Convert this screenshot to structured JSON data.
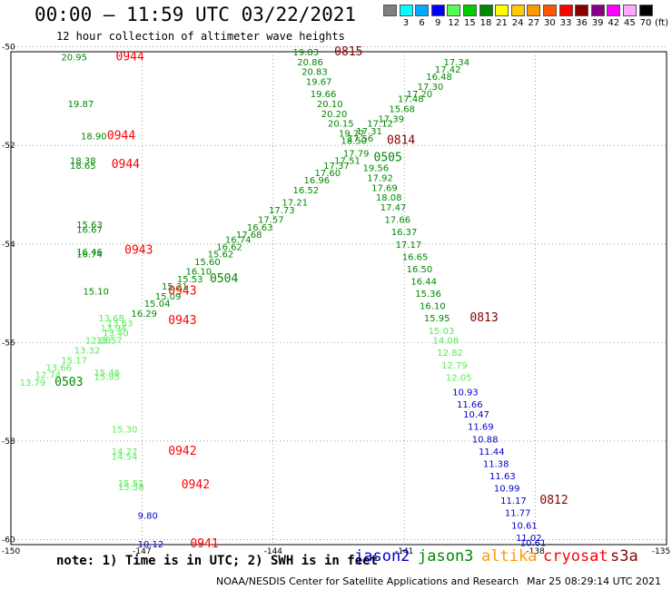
{
  "header": {
    "title": "00:00 – 11:59 UTC 03/22/2021",
    "subtitle": "12 hour collection of altimeter wave heights"
  },
  "colorbar": {
    "labels": [
      "3",
      "6",
      "9",
      "12",
      "15",
      "18",
      "21",
      "24",
      "27",
      "30",
      "33",
      "36",
      "39",
      "42",
      "45",
      "70",
      "(ft)"
    ],
    "colors": [
      "#808080",
      "#00ffff",
      "#00aaff",
      "#0000ff",
      "#55ff55",
      "#00cc00",
      "#008800",
      "#ffff00",
      "#ffcc00",
      "#ff9900",
      "#ff5500",
      "#ff0000",
      "#880000",
      "#880088",
      "#ff00ff",
      "#ffaaff",
      "#000000"
    ]
  },
  "map": {
    "lon_ticks": [
      "-150",
      "-147",
      "-144",
      "-141",
      "-138",
      "-135"
    ],
    "lat_ticks": [
      "-50",
      "-52",
      "-54",
      "-56",
      "-58",
      "-60"
    ],
    "frame": {
      "lon_min": -150,
      "lon_max": -135,
      "lat_min": -60.1,
      "lat_max": -50.1
    },
    "colors": {
      "jason3": "#008800",
      "jason3_light": "#55ee55",
      "altika": "#ff9900",
      "jason2": "#0000cc",
      "cryosat": "#ff0000",
      "time_dark": "#880000"
    },
    "points": [
      {
        "t": "20.95",
        "lon": -148.85,
        "lat": -50.2,
        "c": "#008800"
      },
      {
        "t": "0944",
        "lon": -147.6,
        "lat": -50.2,
        "c": "#ff0000",
        "time": true
      },
      {
        "t": "19.87",
        "lon": -148.7,
        "lat": -51.15,
        "c": "#008800"
      },
      {
        "t": "18.90",
        "lon": -148.4,
        "lat": -51.8,
        "c": "#008800"
      },
      {
        "t": "0944",
        "lon": -147.8,
        "lat": -51.8,
        "c": "#ff0000",
        "time": true
      },
      {
        "t": "18.38",
        "lon": -148.65,
        "lat": -52.3,
        "c": "#008800"
      },
      {
        "t": "18.65",
        "lon": -148.65,
        "lat": -52.4,
        "c": "#008800"
      },
      {
        "t": "0944",
        "lon": -147.7,
        "lat": -52.38,
        "c": "#ff0000",
        "time": true
      },
      {
        "t": "15.63",
        "lon": -148.5,
        "lat": -53.6,
        "c": "#008800"
      },
      {
        "t": "16.67",
        "lon": -148.5,
        "lat": -53.7,
        "c": "#008800"
      },
      {
        "t": "16.46",
        "lon": -148.5,
        "lat": -54.15,
        "c": "#008800"
      },
      {
        "t": "16.74",
        "lon": -148.5,
        "lat": -54.2,
        "c": "#008800"
      },
      {
        "t": "0943",
        "lon": -147.4,
        "lat": -54.12,
        "c": "#ff0000",
        "time": true
      },
      {
        "t": "15.10",
        "lon": -148.35,
        "lat": -54.95,
        "c": "#008800"
      },
      {
        "t": "0943",
        "lon": -146.4,
        "lat": -54.95,
        "c": "#ff0000",
        "time": true
      },
      {
        "t": "0943",
        "lon": -146.4,
        "lat": -55.55,
        "c": "#ff0000",
        "time": true
      },
      {
        "t": "15.46",
        "lon": -148.1,
        "lat": -56.6,
        "c": "#55ee55"
      },
      {
        "t": "15.85",
        "lon": -148.1,
        "lat": -56.68,
        "c": "#55ee55"
      },
      {
        "t": "15.30",
        "lon": -147.7,
        "lat": -57.75,
        "c": "#55ee55"
      },
      {
        "t": "14.77",
        "lon": -147.7,
        "lat": -58.2,
        "c": "#55ee55"
      },
      {
        "t": "14.54",
        "lon": -147.7,
        "lat": -58.3,
        "c": "#55ee55"
      },
      {
        "t": "0942",
        "lon": -146.4,
        "lat": -58.2,
        "c": "#ff0000",
        "time": true
      },
      {
        "t": "15.51",
        "lon": -147.55,
        "lat": -58.85,
        "c": "#55ee55"
      },
      {
        "t": "15.58",
        "lon": -147.55,
        "lat": -58.92,
        "c": "#55ee55"
      },
      {
        "t": "0942",
        "lon": -146.1,
        "lat": -58.88,
        "c": "#ff0000",
        "time": true
      },
      {
        "t": "9.80",
        "lon": -147.1,
        "lat": -59.5,
        "c": "#0000cc"
      },
      {
        "t": "10.12",
        "lon": -147.1,
        "lat": -60.08,
        "c": "#0000cc"
      },
      {
        "t": "0941",
        "lon": -145.9,
        "lat": -60.08,
        "c": "#ff0000",
        "time": true
      },
      {
        "t": "17.34",
        "lon": -140.1,
        "lat": -50.3,
        "c": "#008800"
      },
      {
        "t": "17.42",
        "lon": -140.3,
        "lat": -50.45,
        "c": "#008800"
      },
      {
        "t": "16.48",
        "lon": -140.5,
        "lat": -50.6,
        "c": "#008800"
      },
      {
        "t": "17.30",
        "lon": -140.7,
        "lat": -50.8,
        "c": "#008800"
      },
      {
        "t": "17.20",
        "lon": -140.95,
        "lat": -50.95,
        "c": "#008800"
      },
      {
        "t": "17.48",
        "lon": -141.15,
        "lat": -51.05,
        "c": "#008800"
      },
      {
        "t": "15.68",
        "lon": -141.35,
        "lat": -51.25,
        "c": "#008800"
      },
      {
        "t": "17.39",
        "lon": -141.6,
        "lat": -51.45,
        "c": "#008800"
      },
      {
        "t": "17.12",
        "lon": -141.85,
        "lat": -51.55,
        "c": "#008800"
      },
      {
        "t": "17.31",
        "lon": -142.1,
        "lat": -51.7,
        "c": "#008800"
      },
      {
        "t": "17.56",
        "lon": -142.3,
        "lat": -51.85,
        "c": "#008800"
      },
      {
        "t": "0505",
        "lon": -141.7,
        "lat": -52.25,
        "c": "#008800",
        "time": true
      },
      {
        "t": "17.79",
        "lon": -142.4,
        "lat": -52.15,
        "c": "#008800"
      },
      {
        "t": "17.51",
        "lon": -142.6,
        "lat": -52.3,
        "c": "#008800"
      },
      {
        "t": "17.37",
        "lon": -142.85,
        "lat": -52.4,
        "c": "#008800"
      },
      {
        "t": "17.60",
        "lon": -143.05,
        "lat": -52.55,
        "c": "#008800"
      },
      {
        "t": "16.96",
        "lon": -143.3,
        "lat": -52.7,
        "c": "#008800"
      },
      {
        "t": "16.52",
        "lon": -143.55,
        "lat": -52.9,
        "c": "#008800"
      },
      {
        "t": "17.21",
        "lon": -143.8,
        "lat": -53.15,
        "c": "#008800"
      },
      {
        "t": "17.73",
        "lon": -144.1,
        "lat": -53.3,
        "c": "#008800"
      },
      {
        "t": "17.57",
        "lon": -144.35,
        "lat": -53.5,
        "c": "#008800"
      },
      {
        "t": "16.63",
        "lon": -144.6,
        "lat": -53.65,
        "c": "#008800"
      },
      {
        "t": "17.68",
        "lon": -144.85,
        "lat": -53.8,
        "c": "#008800"
      },
      {
        "t": "16.74",
        "lon": -145.1,
        "lat": -53.9,
        "c": "#008800"
      },
      {
        "t": "16.62",
        "lon": -145.3,
        "lat": -54.05,
        "c": "#008800"
      },
      {
        "t": "15.62",
        "lon": -145.5,
        "lat": -54.2,
        "c": "#008800"
      },
      {
        "t": "15.60",
        "lon": -145.8,
        "lat": -54.35,
        "c": "#008800"
      },
      {
        "t": "16.10",
        "lon": -146.0,
        "lat": -54.55,
        "c": "#008800"
      },
      {
        "t": "15.53",
        "lon": -146.2,
        "lat": -54.7,
        "c": "#008800"
      },
      {
        "t": "0504",
        "lon": -145.45,
        "lat": -54.7,
        "c": "#008800",
        "time": true
      },
      {
        "t": "15.21",
        "lon": -146.55,
        "lat": -54.85,
        "c": "#008800"
      },
      {
        "t": "15.09",
        "lon": -146.7,
        "lat": -55.05,
        "c": "#008800"
      },
      {
        "t": "15.04",
        "lon": -146.95,
        "lat": -55.2,
        "c": "#008800"
      },
      {
        "t": "16.29",
        "lon": -147.25,
        "lat": -55.4,
        "c": "#008800"
      },
      {
        "t": "13.68",
        "lon": -148.0,
        "lat": -55.5,
        "c": "#55ee55"
      },
      {
        "t": "13.63",
        "lon": -147.8,
        "lat": -55.6,
        "c": "#55ee55"
      },
      {
        "t": "13.94",
        "lon": -147.95,
        "lat": -55.7,
        "c": "#55ee55"
      },
      {
        "t": "13.40",
        "lon": -147.9,
        "lat": -55.8,
        "c": "#55ee55"
      },
      {
        "t": "12.88",
        "lon": -148.3,
        "lat": -55.95,
        "c": "#55ee55"
      },
      {
        "t": "13.57",
        "lon": -148.05,
        "lat": -55.95,
        "c": "#55ee55"
      },
      {
        "t": "13.32",
        "lon": -148.55,
        "lat": -56.15,
        "c": "#55ee55"
      },
      {
        "t": "15.17",
        "lon": -148.85,
        "lat": -56.35,
        "c": "#55ee55"
      },
      {
        "t": "13.66",
        "lon": -149.2,
        "lat": -56.5,
        "c": "#55ee55"
      },
      {
        "t": "12.74",
        "lon": -149.45,
        "lat": -56.65,
        "c": "#55ee55"
      },
      {
        "t": "13.79",
        "lon": -149.8,
        "lat": -56.8,
        "c": "#55ee55"
      },
      {
        "t": "0503",
        "lon": -149.0,
        "lat": -56.8,
        "c": "#008800",
        "time": true
      },
      {
        "t": "19.83",
        "lon": -143.55,
        "lat": -50.1,
        "c": "#008800"
      },
      {
        "t": "0815",
        "lon": -142.6,
        "lat": -50.1,
        "c": "#880000",
        "time": true
      },
      {
        "t": "20.86",
        "lon": -143.45,
        "lat": -50.3,
        "c": "#008800"
      },
      {
        "t": "20.83",
        "lon": -143.35,
        "lat": -50.5,
        "c": "#008800"
      },
      {
        "t": "19.67",
        "lon": -143.25,
        "lat": -50.7,
        "c": "#008800"
      },
      {
        "t": "19.66",
        "lon": -143.15,
        "lat": -50.95,
        "c": "#008800"
      },
      {
        "t": "20.10",
        "lon": -143.0,
        "lat": -51.15,
        "c": "#008800"
      },
      {
        "t": "20.20",
        "lon": -142.9,
        "lat": -51.35,
        "c": "#008800"
      },
      {
        "t": "20.15",
        "lon": -142.75,
        "lat": -51.55,
        "c": "#008800"
      },
      {
        "t": "19.77",
        "lon": -142.5,
        "lat": -51.75,
        "c": "#008800"
      },
      {
        "t": "18.50",
        "lon": -142.45,
        "lat": -51.9,
        "c": "#008800"
      },
      {
        "t": "0814",
        "lon": -141.4,
        "lat": -51.9,
        "c": "#880000",
        "time": true
      },
      {
        "t": "19.56",
        "lon": -141.95,
        "lat": -52.45,
        "c": "#008800"
      },
      {
        "t": "17.92",
        "lon": -141.85,
        "lat": -52.65,
        "c": "#008800"
      },
      {
        "t": "17.69",
        "lon": -141.75,
        "lat": -52.85,
        "c": "#008800"
      },
      {
        "t": "18.08",
        "lon": -141.65,
        "lat": -53.05,
        "c": "#008800"
      },
      {
        "t": "17.47",
        "lon": -141.55,
        "lat": -53.25,
        "c": "#008800"
      },
      {
        "t": "17.66",
        "lon": -141.45,
        "lat": -53.5,
        "c": "#008800"
      },
      {
        "t": "16.37",
        "lon": -141.3,
        "lat": -53.75,
        "c": "#008800"
      },
      {
        "t": "17.17",
        "lon": -141.2,
        "lat": -54.0,
        "c": "#008800"
      },
      {
        "t": "16.65",
        "lon": -141.05,
        "lat": -54.25,
        "c": "#008800"
      },
      {
        "t": "16.50",
        "lon": -140.95,
        "lat": -54.5,
        "c": "#008800"
      },
      {
        "t": "16.44",
        "lon": -140.85,
        "lat": -54.75,
        "c": "#008800"
      },
      {
        "t": "15.36",
        "lon": -140.75,
        "lat": -55.0,
        "c": "#008800"
      },
      {
        "t": "16.10",
        "lon": -140.65,
        "lat": -55.25,
        "c": "#008800"
      },
      {
        "t": "15.95",
        "lon": -140.55,
        "lat": -55.5,
        "c": "#008800"
      },
      {
        "t": "0813",
        "lon": -139.5,
        "lat": -55.5,
        "c": "#880000",
        "time": true
      },
      {
        "t": "15.03",
        "lon": -140.45,
        "lat": -55.75,
        "c": "#55ee55"
      },
      {
        "t": "14.08",
        "lon": -140.35,
        "lat": -55.95,
        "c": "#55ee55"
      },
      {
        "t": "12.82",
        "lon": -140.25,
        "lat": -56.2,
        "c": "#55ee55"
      },
      {
        "t": "12.79",
        "lon": -140.15,
        "lat": -56.45,
        "c": "#55ee55"
      },
      {
        "t": "12.05",
        "lon": -140.05,
        "lat": -56.7,
        "c": "#55ee55"
      },
      {
        "t": "10.93",
        "lon": -139.9,
        "lat": -57.0,
        "c": "#0000cc"
      },
      {
        "t": "11.66",
        "lon": -139.8,
        "lat": -57.25,
        "c": "#0000cc"
      },
      {
        "t": "10.47",
        "lon": -139.65,
        "lat": -57.45,
        "c": "#0000cc"
      },
      {
        "t": "11.69",
        "lon": -139.55,
        "lat": -57.7,
        "c": "#0000cc"
      },
      {
        "t": "10.88",
        "lon": -139.45,
        "lat": -57.95,
        "c": "#0000cc"
      },
      {
        "t": "11.44",
        "lon": -139.3,
        "lat": -58.2,
        "c": "#0000cc"
      },
      {
        "t": "11.38",
        "lon": -139.2,
        "lat": -58.45,
        "c": "#0000cc"
      },
      {
        "t": "11.63",
        "lon": -139.05,
        "lat": -58.7,
        "c": "#0000cc"
      },
      {
        "t": "10.99",
        "lon": -138.95,
        "lat": -58.95,
        "c": "#0000cc"
      },
      {
        "t": "11.17",
        "lon": -138.8,
        "lat": -59.2,
        "c": "#0000cc"
      },
      {
        "t": "0812",
        "lon": -137.9,
        "lat": -59.2,
        "c": "#880000",
        "time": true
      },
      {
        "t": "11.77",
        "lon": -138.7,
        "lat": -59.45,
        "c": "#0000cc"
      },
      {
        "t": "10.61",
        "lon": -138.55,
        "lat": -59.7,
        "c": "#0000cc"
      },
      {
        "t": "11.02",
        "lon": -138.45,
        "lat": -59.95,
        "c": "#0000cc"
      },
      {
        "t": "10.61",
        "lon": -138.35,
        "lat": -60.05,
        "c": "#0000cc"
      }
    ]
  },
  "footer": {
    "note": "note: 1) Time is in UTC; 2) SWH is in feet",
    "legend": [
      {
        "name": "jason2",
        "color": "#0000cc"
      },
      {
        "name": "jason3",
        "color": "#008800"
      },
      {
        "name": "altika",
        "color": "#ff9900"
      },
      {
        "name": "cryosat",
        "color": "#ff0000"
      },
      {
        "name": "s3a",
        "color": "#880000"
      }
    ],
    "credit": "NOAA/NESDIS Center for Satellite Applications and Research",
    "timestamp": "Mar 25 08:29:14 UTC 2021"
  }
}
